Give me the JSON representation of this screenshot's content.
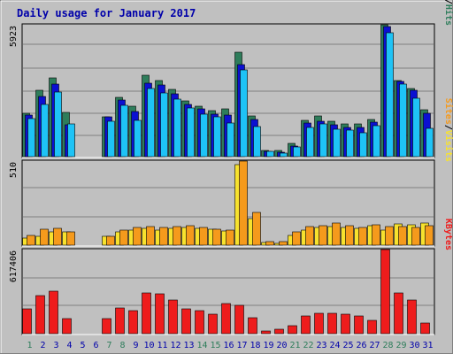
{
  "chart_data": {
    "type": "bar",
    "title": "Daily usage for January 2017",
    "categories": [
      "1",
      "2",
      "3",
      "4",
      "5",
      "6",
      "7",
      "8",
      "9",
      "10",
      "11",
      "12",
      "13",
      "14",
      "15",
      "16",
      "17",
      "18",
      "19",
      "20",
      "21",
      "22",
      "23",
      "24",
      "25",
      "26",
      "27",
      "28",
      "29",
      "30",
      "31"
    ],
    "weekend_days": [
      "1",
      "7",
      "8",
      "14",
      "15",
      "21",
      "22",
      "28",
      "29"
    ],
    "colors": {
      "background": "#c0c0c0",
      "title": "#0000aa",
      "hits": "#2e7d5b",
      "files": "#0b10d2",
      "pages": "#1ec3f6",
      "visits": "#f7e22e",
      "sites": "#f59a1c",
      "kbytes": "#ee1c1c",
      "weekend_label": "#2e7d5b",
      "weekday_label": "#0000aa"
    },
    "panels": [
      {
        "id": "usage",
        "ymax_label": "5923",
        "legend": [
          "Pages",
          "/",
          "Files",
          "/",
          "Hits"
        ],
        "legend_colors": [
          "#1ec3f6",
          "#000000",
          "#0b10d2",
          "#000000",
          "#2e7d5b"
        ],
        "ylim": [
          0,
          5923
        ],
        "series": [
          {
            "name": "Hits",
            "values": [
              1950,
              2980,
              3550,
              1980,
              0,
              0,
              1800,
              2660,
              2280,
              3660,
              3400,
              3020,
              2500,
              2270,
              2060,
              2160,
              4700,
              1830,
              290,
              290,
              580,
              1640,
              1840,
              1580,
              1490,
              1490,
              1660,
              5920,
              3420,
              3080,
              2100
            ]
          },
          {
            "name": "Files",
            "values": [
              1850,
              2700,
              3250,
              1450,
              0,
              0,
              1780,
              2540,
              2040,
              3290,
              3210,
              2830,
              2350,
              2160,
              1890,
              1870,
              4150,
              1680,
              250,
              210,
              490,
              1500,
              1590,
              1420,
              1320,
              1320,
              1560,
              5850,
              3360,
              2980,
              1960
            ]
          },
          {
            "name": "Pages",
            "values": [
              1710,
              2350,
              2900,
              1470,
              0,
              0,
              1580,
              2320,
              1640,
              3050,
              2880,
              2580,
              2180,
              1920,
              1770,
              1530,
              3900,
              1340,
              230,
              160,
              430,
              1330,
              1460,
              1220,
              1190,
              1060,
              1380,
              5580,
              3260,
              2620,
              1270
            ]
          }
        ]
      },
      {
        "id": "visits",
        "ymax_label": "510",
        "legend": [
          "Sites",
          "/",
          "Visits"
        ],
        "legend_colors": [
          "#f59a1c",
          "#000000",
          "#f7e22e"
        ],
        "ylim": [
          0,
          510
        ],
        "series": [
          {
            "name": "Visits",
            "values": [
              45,
              55,
              78,
              80,
              0,
              0,
              52,
              80,
              92,
              100,
              92,
              100,
              105,
              100,
              95,
              85,
              490,
              160,
              18,
              12,
              60,
              92,
              108,
              112,
              108,
              100,
              118,
              92,
              128,
              122,
              132
            ]
          },
          {
            "name": "Sites",
            "values": [
              60,
              95,
              100,
              80,
              0,
              0,
              55,
              90,
              110,
              115,
              108,
              115,
              118,
              110,
              95,
              90,
              510,
              200,
              20,
              22,
              78,
              115,
              120,
              135,
              118,
              110,
              125,
              115,
              112,
              108,
              120
            ]
          }
        ]
      },
      {
        "id": "kbytes",
        "ymax_label": "617406",
        "legend": [
          "KBytes"
        ],
        "legend_colors": [
          "#ee1c1c"
        ],
        "ylim": [
          0,
          617406
        ],
        "series": [
          {
            "name": "KBytes",
            "values": [
              180000,
              280000,
              310000,
              110000,
              0,
              0,
              110000,
              190000,
              170000,
              300000,
              290000,
              250000,
              180000,
              170000,
              140000,
              220000,
              210000,
              120000,
              20000,
              30000,
              60000,
              130000,
              150000,
              150000,
              140000,
              130000,
              100000,
              617406,
              300000,
              250000,
              80000
            ]
          }
        ]
      }
    ]
  }
}
